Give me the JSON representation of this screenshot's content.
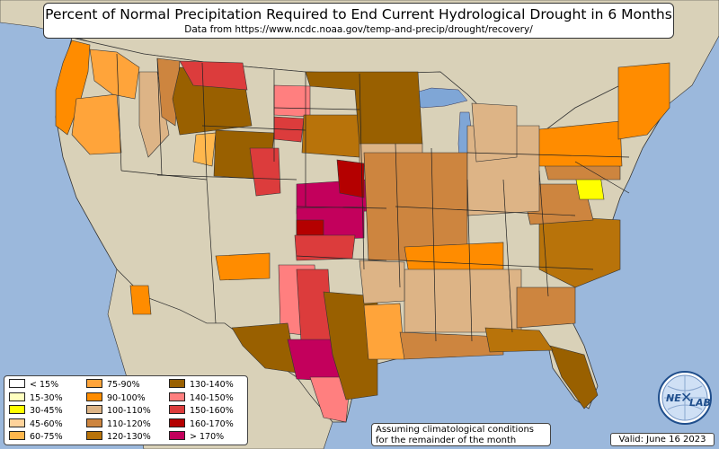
{
  "title": "Percent of Normal Precipitation Required to End Current Hydrological Drought in 6 Months",
  "subtitle": "Data from https://www.ncdc.noaa.gov/temp-and-precip/drought/recovery/",
  "note_lines": [
    "Assuming climatological conditions",
    "for the remainder of the month"
  ],
  "valid": "Valid: June 16 2023",
  "logo_text": {
    "left": "NE",
    "right": "LAB"
  },
  "colors": {
    "ocean": "#9bb8dc",
    "land": "#d9d1b8",
    "lakes": "#7fa6d6",
    "state_lines": "#222222",
    "country_border": "#333333"
  },
  "legend": [
    {
      "label": "< 15%",
      "color": "#ffffff"
    },
    {
      "label": "15-30%",
      "color": "#ffffbf"
    },
    {
      "label": "30-45%",
      "color": "#ffff00"
    },
    {
      "label": "45-60%",
      "color": "#ffd39b"
    },
    {
      "label": "60-75%",
      "color": "#ffb74d"
    },
    {
      "label": "75-90%",
      "color": "#ffa43a"
    },
    {
      "label": "90-100%",
      "color": "#ff8c00"
    },
    {
      "label": "100-110%",
      "color": "#ddb486"
    },
    {
      "label": "110-120%",
      "color": "#cd853f"
    },
    {
      "label": "120-130%",
      "color": "#b8730a"
    },
    {
      "label": "130-140%",
      "color": "#996000"
    },
    {
      "label": "140-150%",
      "color": "#ff7f7f"
    },
    {
      "label": "150-160%",
      "color": "#dc3c3c"
    },
    {
      "label": "160-170%",
      "color": "#b40000"
    },
    {
      "label": "> 170%",
      "color": "#c3005c"
    }
  ],
  "regions": [
    {
      "name": "pacific-northwest-coast",
      "cls": "90-100%"
    },
    {
      "name": "oregon-west",
      "cls": "75-90%"
    },
    {
      "name": "washington-east",
      "cls": "75-90%"
    },
    {
      "name": "idaho-north",
      "cls": "100-110%"
    },
    {
      "name": "montana-west",
      "cls": "110-120%"
    },
    {
      "name": "montana-central",
      "cls": "130-140%"
    },
    {
      "name": "montana-northeast",
      "cls": "150-160%"
    },
    {
      "name": "wyoming-west",
      "cls": "60-75%"
    },
    {
      "name": "wyoming-east",
      "cls": "130-140%"
    },
    {
      "name": "colorado-east",
      "cls": "150-160%"
    },
    {
      "name": "north-dakota-east",
      "cls": "140-150%"
    },
    {
      "name": "south-dakota-west",
      "cls": "150-160%"
    },
    {
      "name": "south-dakota-east",
      "cls": "120-130%"
    },
    {
      "name": "minnesota",
      "cls": "130-140%"
    },
    {
      "name": "iowa-wisconsin",
      "cls": "100-110%"
    },
    {
      "name": "nebraska-east",
      "cls": "> 170%"
    },
    {
      "name": "nebraska-southeast",
      "cls": "160-170%"
    },
    {
      "name": "kansas",
      "cls": "> 170%"
    },
    {
      "name": "kansas-southwest",
      "cls": "160-170%"
    },
    {
      "name": "oklahoma-north",
      "cls": "150-160%"
    },
    {
      "name": "missouri-illinois",
      "cls": "110-120%"
    },
    {
      "name": "southwest-new-mexico",
      "cls": "90-100%"
    },
    {
      "name": "new-mexico-east",
      "cls": "140-150%"
    },
    {
      "name": "texas-panhandle",
      "cls": "150-160%"
    },
    {
      "name": "texas-west",
      "cls": "130-140%"
    },
    {
      "name": "texas-central",
      "cls": "> 170%"
    },
    {
      "name": "texas-south",
      "cls": "140-150%"
    },
    {
      "name": "texas-east",
      "cls": "130-140%"
    },
    {
      "name": "louisiana",
      "cls": "75-90%"
    },
    {
      "name": "gulf-coast",
      "cls": "110-120%"
    },
    {
      "name": "tennessee-kentucky",
      "cls": "90-100%"
    },
    {
      "name": "southeast-interior",
      "cls": "100-110%"
    },
    {
      "name": "georgia-north",
      "cls": "110-120%"
    },
    {
      "name": "florida-peninsula",
      "cls": "130-140%"
    },
    {
      "name": "florida-east",
      "cls": "120-130%"
    },
    {
      "name": "carolinas",
      "cls": "120-130%"
    },
    {
      "name": "virginia",
      "cls": "110-120%"
    },
    {
      "name": "maryland-delaware",
      "cls": "30-45%"
    },
    {
      "name": "mid-atlantic",
      "cls": "110-120%"
    },
    {
      "name": "new-york-pennsylvania",
      "cls": "90-100%"
    },
    {
      "name": "new-england",
      "cls": "90-100%"
    },
    {
      "name": "ohio-valley",
      "cls": "100-110%"
    },
    {
      "name": "michigan",
      "cls": "100-110%"
    },
    {
      "name": "arkansas",
      "cls": "100-110%"
    },
    {
      "name": "arizona-southwest",
      "cls": "90-100%"
    }
  ]
}
